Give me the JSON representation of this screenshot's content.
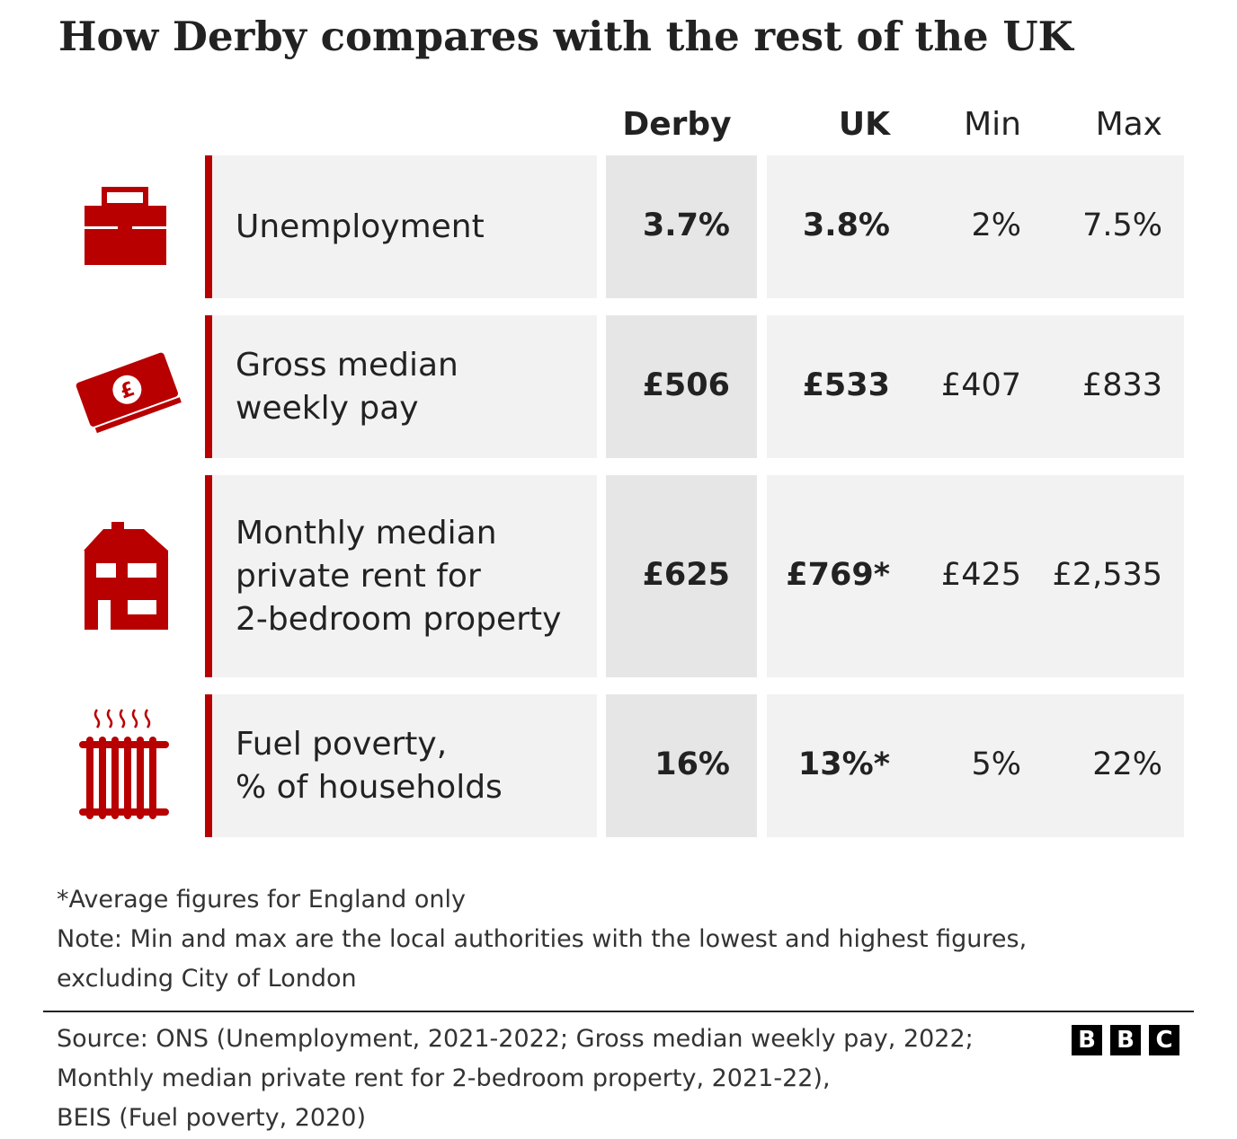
{
  "header": {
    "title": "How Derby compares with the rest of the UK"
  },
  "table": {
    "columns": [
      "Derby",
      "UK",
      "Min",
      "Max"
    ],
    "rows": [
      {
        "label": [
          "Unemployment"
        ],
        "values": [
          "3.7%",
          "3.8%",
          "2%",
          "7.5%"
        ]
      },
      {
        "label": [
          "Gross median",
          "weekly pay"
        ],
        "values": [
          "£506",
          "£533",
          "£407",
          "£833"
        ]
      },
      {
        "label": [
          "Monthly median",
          "private rent for",
          "2-bedroom property"
        ],
        "values": [
          "£625",
          "£769*",
          "£425",
          "£2,535"
        ]
      },
      {
        "label": [
          "Fuel poverty,",
          "% of households"
        ],
        "values": [
          "16%",
          "13%*",
          "5%",
          "22%"
        ]
      }
    ]
  },
  "notes": [
    "*Average figures for England only",
    "Note: Min and max are the local authorities with the lowest and highest figures,",
    "excluding City of London"
  ],
  "source": [
    "Source: ONS (Unemployment, 2021-2022; Gross median weekly pay, 2022;",
    "Monthly median private rent for 2-bedroom property, 2021-22),",
    "BEIS (Fuel poverty, 2020)"
  ],
  "logo": [
    "B",
    "B",
    "C"
  ]
}
